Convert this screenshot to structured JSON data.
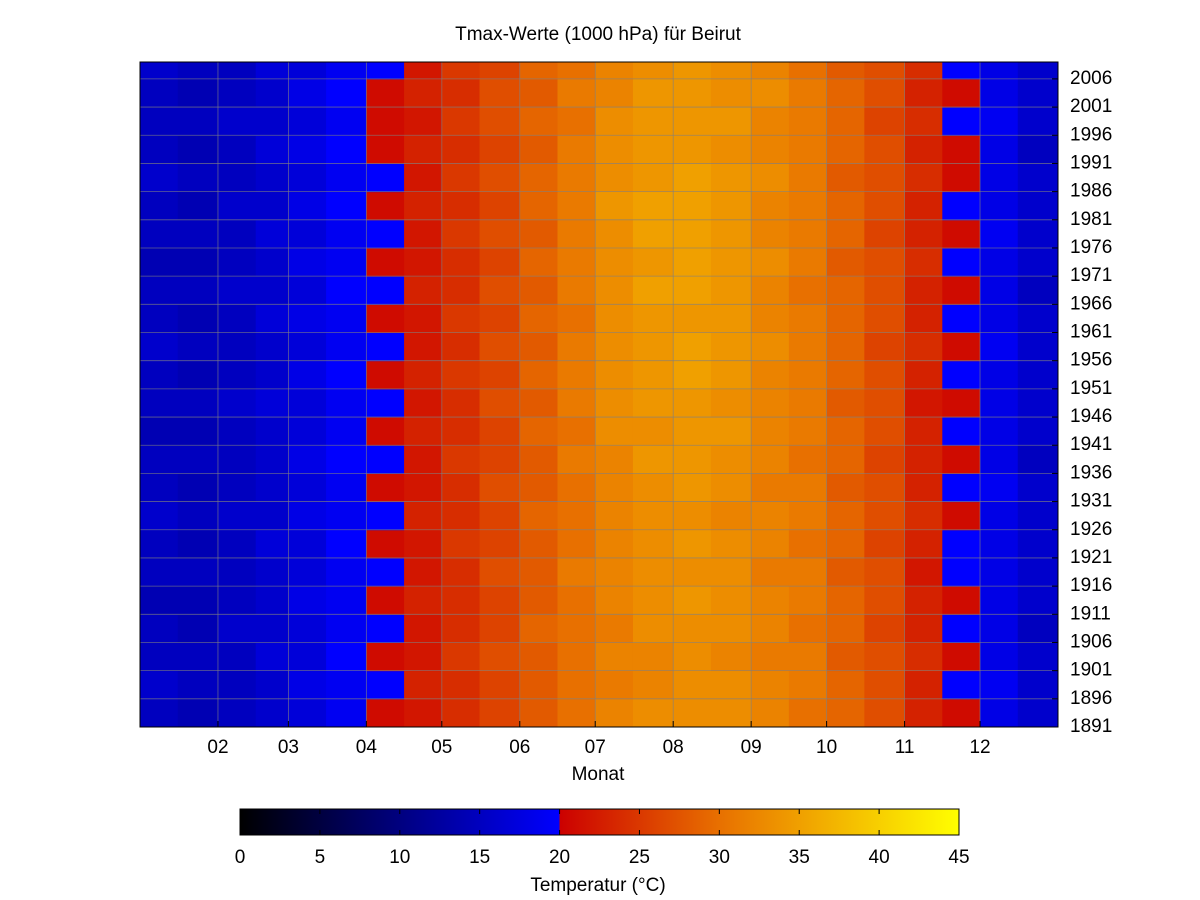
{
  "chart_data": {
    "type": "heatmap",
    "title": "Tmax-Werte (1000 hPa) für Beirut",
    "x_label": "Monat",
    "colorbar_label": "Temperatur (°C)",
    "x": [
      1,
      16,
      32,
      47,
      60,
      75,
      91,
      106,
      121,
      136,
      152,
      167,
      182,
      197,
      213,
      228,
      244,
      259,
      274,
      289,
      305,
      320,
      335,
      350
    ],
    "y": [
      1891,
      1896,
      1901,
      1906,
      1911,
      1916,
      1921,
      1926,
      1931,
      1936,
      1941,
      1946,
      1951,
      1956,
      1961,
      1966,
      1971,
      1976,
      1981,
      1986,
      1991,
      1996,
      2001,
      2006
    ],
    "values": [
      [
        15,
        14,
        15,
        16,
        17,
        19,
        21,
        22,
        24,
        26,
        28,
        30,
        32,
        33,
        33,
        33,
        32,
        30,
        29,
        27,
        23,
        21,
        18,
        16
      ],
      [
        16,
        15,
        15,
        16,
        18,
        19,
        20,
        23,
        24,
        26,
        28,
        30,
        31,
        32,
        33,
        33,
        32,
        31,
        29,
        27,
        23,
        20,
        19,
        16
      ],
      [
        15,
        15,
        15,
        17,
        17,
        20,
        21,
        22,
        25,
        27,
        28,
        30,
        32,
        32,
        33,
        32,
        31,
        31,
        28,
        27,
        24,
        21,
        18,
        16
      ],
      [
        15,
        14,
        16,
        16,
        17,
        19,
        20,
        22,
        24,
        26,
        29,
        30,
        31,
        33,
        33,
        33,
        32,
        30,
        29,
        26,
        23,
        20,
        18,
        15
      ],
      [
        14,
        14,
        15,
        16,
        18,
        19,
        21,
        23,
        24,
        26,
        28,
        30,
        32,
        33,
        34,
        33,
        32,
        31,
        29,
        27,
        23,
        21,
        18,
        16
      ],
      [
        15,
        15,
        15,
        16,
        17,
        19,
        20,
        22,
        24,
        27,
        28,
        31,
        32,
        33,
        33,
        33,
        31,
        31,
        28,
        27,
        22,
        20,
        18,
        16
      ],
      [
        15,
        14,
        15,
        17,
        17,
        20,
        21,
        22,
        25,
        26,
        28,
        30,
        32,
        33,
        34,
        33,
        32,
        30,
        29,
        26,
        23,
        20,
        18,
        16
      ],
      [
        16,
        15,
        16,
        16,
        18,
        19,
        20,
        23,
        24,
        26,
        29,
        30,
        32,
        33,
        33,
        32,
        32,
        31,
        29,
        27,
        24,
        21,
        18,
        16
      ],
      [
        15,
        14,
        15,
        16,
        17,
        19,
        21,
        22,
        24,
        27,
        28,
        30,
        32,
        33,
        34,
        33,
        31,
        31,
        28,
        27,
        23,
        20,
        19,
        16
      ],
      [
        15,
        15,
        15,
        16,
        18,
        20,
        20,
        22,
        25,
        26,
        28,
        31,
        32,
        34,
        34,
        33,
        32,
        30,
        29,
        26,
        23,
        21,
        18,
        15
      ],
      [
        14,
        14,
        15,
        16,
        17,
        19,
        21,
        23,
        24,
        26,
        29,
        30,
        33,
        33,
        34,
        34,
        32,
        31,
        29,
        27,
        23,
        20,
        18,
        16
      ],
      [
        15,
        15,
        16,
        17,
        17,
        19,
        20,
        22,
        24,
        27,
        28,
        31,
        33,
        34,
        34,
        33,
        32,
        31,
        28,
        27,
        22,
        21,
        18,
        16
      ],
      [
        15,
        14,
        15,
        16,
        18,
        20,
        21,
        23,
        25,
        26,
        29,
        31,
        33,
        34,
        35,
        34,
        32,
        31,
        29,
        27,
        23,
        20,
        18,
        16
      ],
      [
        16,
        15,
        15,
        16,
        17,
        19,
        20,
        22,
        24,
        27,
        28,
        31,
        33,
        34,
        35,
        34,
        33,
        31,
        29,
        26,
        24,
        21,
        19,
        16
      ],
      [
        15,
        14,
        15,
        17,
        18,
        19,
        21,
        22,
        25,
        26,
        29,
        30,
        33,
        34,
        34,
        34,
        32,
        31,
        29,
        27,
        23,
        20,
        18,
        16
      ],
      [
        15,
        15,
        16,
        16,
        17,
        20,
        20,
        23,
        24,
        27,
        28,
        31,
        33,
        35,
        35,
        34,
        32,
        30,
        29,
        27,
        23,
        21,
        18,
        15
      ],
      [
        14,
        14,
        15,
        16,
        18,
        19,
        21,
        22,
        24,
        26,
        29,
        31,
        33,
        34,
        35,
        34,
        33,
        31,
        28,
        27,
        24,
        20,
        18,
        16
      ],
      [
        15,
        15,
        15,
        17,
        17,
        19,
        20,
        22,
        25,
        27,
        28,
        31,
        33,
        35,
        35,
        34,
        32,
        31,
        29,
        26,
        23,
        21,
        19,
        16
      ],
      [
        15,
        14,
        16,
        16,
        18,
        20,
        21,
        23,
        24,
        26,
        29,
        31,
        34,
        35,
        35,
        34,
        32,
        31,
        29,
        27,
        23,
        20,
        18,
        16
      ],
      [
        16,
        15,
        15,
        16,
        17,
        19,
        20,
        22,
        25,
        27,
        29,
        31,
        33,
        34,
        35,
        34,
        33,
        31,
        28,
        27,
        24,
        21,
        18,
        16
      ],
      [
        15,
        14,
        15,
        17,
        18,
        20,
        21,
        23,
        24,
        26,
        28,
        31,
        33,
        34,
        34,
        33,
        32,
        31,
        29,
        27,
        23,
        21,
        18,
        15
      ],
      [
        15,
        15,
        16,
        16,
        17,
        19,
        21,
        22,
        25,
        27,
        29,
        30,
        33,
        34,
        34,
        34,
        32,
        31,
        29,
        26,
        24,
        20,
        19,
        16
      ],
      [
        15,
        14,
        15,
        16,
        18,
        20,
        21,
        23,
        24,
        27,
        28,
        31,
        32,
        34,
        34,
        33,
        33,
        31,
        29,
        27,
        23,
        21,
        18,
        16
      ],
      [
        16,
        15,
        15,
        17,
        17,
        19,
        20,
        22,
        25,
        26,
        29,
        30,
        32,
        33,
        34,
        33,
        32,
        30,
        28,
        27,
        24,
        20,
        18,
        16
      ]
    ],
    "xlim": [
      1,
      366
    ],
    "xticks": [
      {
        "value": 32,
        "label": "02"
      },
      {
        "value": 60,
        "label": "03"
      },
      {
        "value": 91,
        "label": "04"
      },
      {
        "value": 121,
        "label": "05"
      },
      {
        "value": 152,
        "label": "06"
      },
      {
        "value": 182,
        "label": "07"
      },
      {
        "value": 213,
        "label": "08"
      },
      {
        "value": 244,
        "label": "09"
      },
      {
        "value": 274,
        "label": "10"
      },
      {
        "value": 305,
        "label": "11"
      },
      {
        "value": 335,
        "label": "12"
      }
    ],
    "ylim": [
      1891,
      2009
    ],
    "yticks": [
      1891,
      1896,
      1901,
      1906,
      1911,
      1916,
      1921,
      1926,
      1931,
      1936,
      1941,
      1946,
      1951,
      1956,
      1961,
      1966,
      1971,
      1976,
      1981,
      1986,
      1991,
      1996,
      2001,
      2006
    ],
    "clim": [
      0,
      45
    ],
    "colorbar_ticks": [
      0,
      5,
      10,
      15,
      20,
      25,
      30,
      35,
      40,
      45
    ],
    "colormap": [
      {
        "value": 0,
        "color": "#000000"
      },
      {
        "value": 20,
        "color": "#0000ff"
      },
      {
        "value": 20,
        "color": "#cc0000"
      },
      {
        "value": 30,
        "color": "#e87000"
      },
      {
        "value": 45,
        "color": "#ffff00"
      }
    ],
    "grid": true
  }
}
